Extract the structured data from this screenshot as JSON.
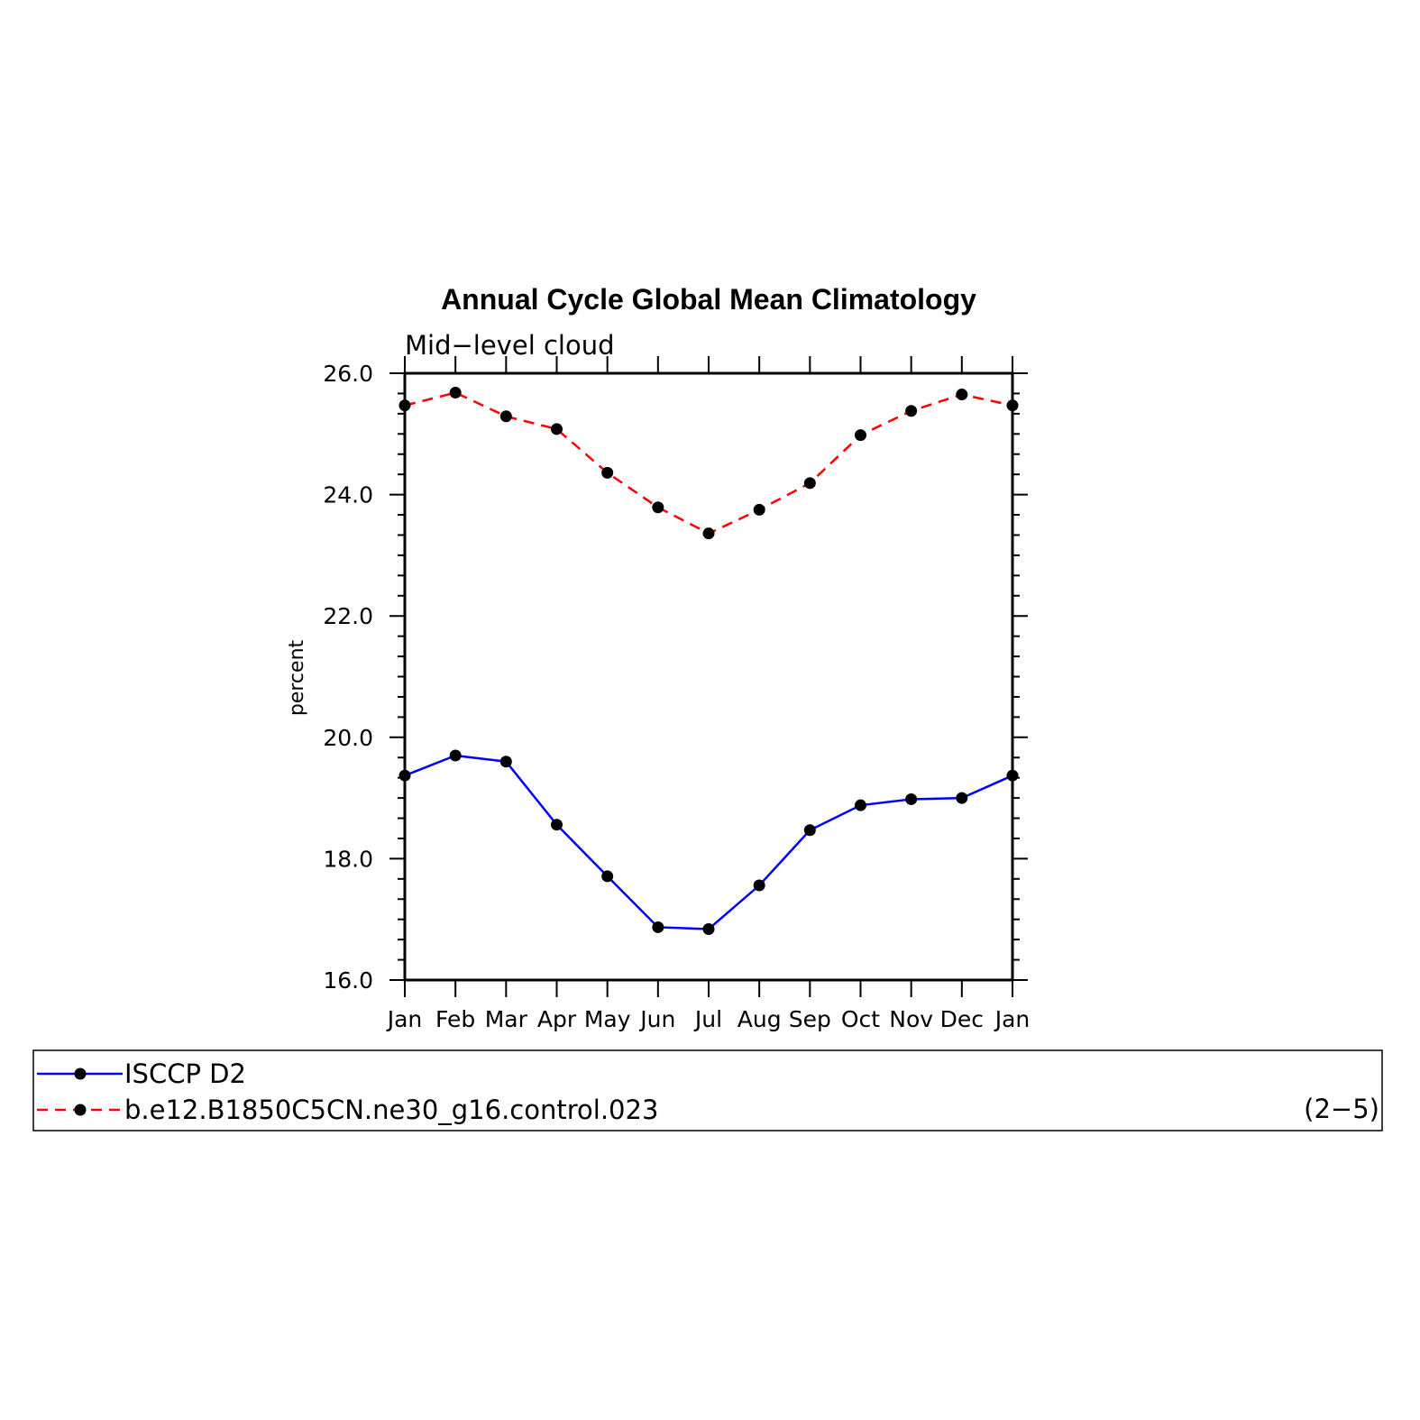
{
  "chart_data": {
    "type": "line",
    "title": "Annual Cycle Global Mean Climatology",
    "subtitle": "Mid−level cloud",
    "ylabel": "percent",
    "xlabel": "",
    "ylim": [
      16.0,
      26.0
    ],
    "y_ticks": [
      "16.0",
      "18.0",
      "20.0",
      "22.0",
      "24.0",
      "26.0"
    ],
    "categories": [
      "Jan",
      "Feb",
      "Mar",
      "Apr",
      "May",
      "Jun",
      "Jul",
      "Aug",
      "Sep",
      "Oct",
      "Nov",
      "Dec",
      "Jan"
    ],
    "series": [
      {
        "name": "ISCCP D2",
        "color": "#0000ff",
        "dash": "solid",
        "values": [
          19.37,
          19.7,
          19.6,
          18.56,
          17.71,
          16.87,
          16.84,
          17.56,
          18.47,
          18.88,
          18.98,
          19.0,
          19.37
        ]
      },
      {
        "name": "b.e12.B1850C5CN.ne30_g16.control.023",
        "color": "#ff0000",
        "dash": "dashed",
        "values": [
          25.47,
          25.68,
          25.29,
          25.08,
          24.36,
          23.79,
          23.36,
          23.75,
          24.19,
          24.98,
          25.38,
          25.65,
          25.47
        ]
      }
    ],
    "legend_position": "bottom",
    "grid": false,
    "panel_label": "(2−5)"
  }
}
